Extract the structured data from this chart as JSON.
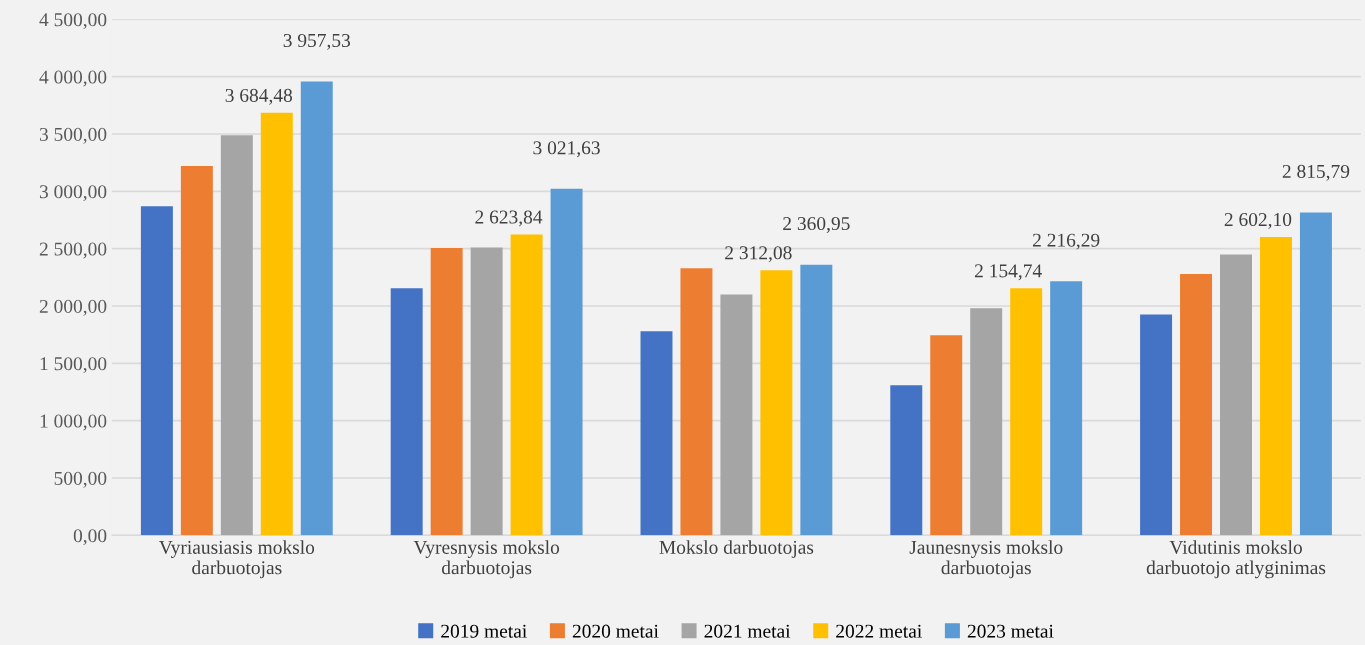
{
  "chart_data": {
    "type": "bar",
    "categories": [
      "Vyriausiasis mokslo\ndarbuotojas",
      "Vyresnysis mokslo\ndarbuotojas",
      "Mokslo darbuotojas",
      "Jaunesnysis mokslo\ndarbuotojas",
      "Vidutinis mokslo\ndarbuotojo atlyginimas"
    ],
    "series": [
      {
        "name": "2019 metai",
        "color": "#4472c4",
        "values": [
          2870,
          2155,
          1780,
          1310,
          1925
        ]
      },
      {
        "name": "2020 metai",
        "color": "#ed7d31",
        "values": [
          3220,
          2505,
          2330,
          1745,
          2280
        ]
      },
      {
        "name": "2021 metai",
        "color": "#a5a5a5",
        "values": [
          3490,
          2510,
          2100,
          1980,
          2450
        ]
      },
      {
        "name": "2022 metai",
        "color": "#ffc000",
        "values": [
          3684.48,
          2623.84,
          2312.08,
          2154.74,
          2602.1
        ],
        "value_labels": [
          "3 684,48",
          "2 623,84",
          "2 312,08",
          "2 154,74",
          "2 602,10"
        ]
      },
      {
        "name": "2023 metai",
        "color": "#5b9bd5",
        "values": [
          3957.53,
          3021.63,
          2360.95,
          2216.29,
          2815.79
        ],
        "value_labels": [
          "3 957,53",
          "3 021,63",
          "2 360,95",
          "2 216,29",
          "2 815,79"
        ]
      }
    ],
    "ylim": [
      0,
      4500
    ],
    "yticks": [
      {
        "value": 0,
        "label": "0,00"
      },
      {
        "value": 500,
        "label": "500,00"
      },
      {
        "value": 1000,
        "label": "1 000,00"
      },
      {
        "value": 1500,
        "label": "1 500,00"
      },
      {
        "value": 2000,
        "label": "2 000,00"
      },
      {
        "value": 2500,
        "label": "2 500,00"
      },
      {
        "value": 3000,
        "label": "3 000,00"
      },
      {
        "value": 3500,
        "label": "3 500,00"
      },
      {
        "value": 4000,
        "label": "4 000,00"
      },
      {
        "value": 4500,
        "label": "4 500,00"
      }
    ],
    "grid": "y",
    "legend": "bottom"
  }
}
